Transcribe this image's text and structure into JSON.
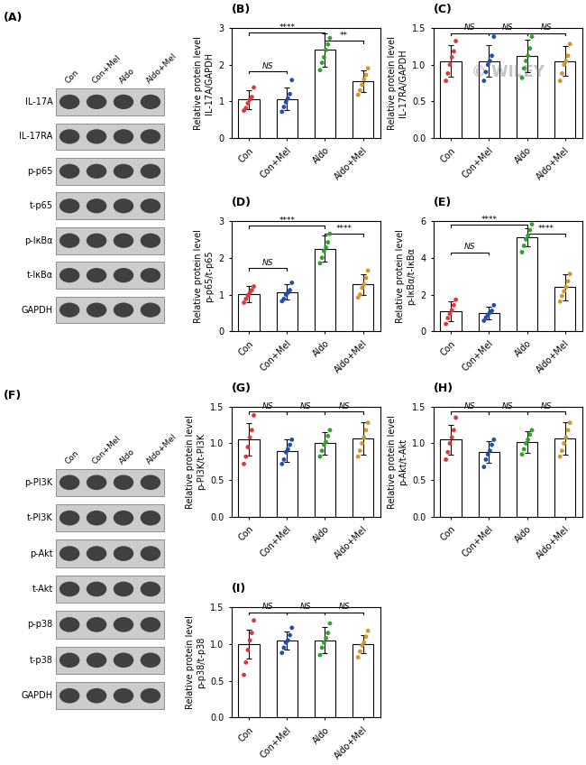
{
  "chart_data": [
    {
      "type": "blot",
      "title": "(A)",
      "rows": [
        "IL-17A",
        "IL-17RA",
        "p-p65",
        "t-p65",
        "p-IκBα",
        "t-IκBα",
        "GAPDH"
      ],
      "categories": [
        "Con",
        "Con+Mel",
        "Aldo",
        "Aldo+Mel"
      ]
    },
    {
      "type": "bar",
      "title": "(B)",
      "ylabel": "Relative protein level\nIL-17A/GAPDH",
      "categories": [
        "Con",
        "Con+Mel",
        "Aldo",
        "Aldo+Mel"
      ],
      "values": [
        1.05,
        1.07,
        2.4,
        1.55
      ],
      "errors": [
        0.25,
        0.3,
        0.45,
        0.3
      ],
      "points": [
        [
          0.75,
          0.82,
          0.95,
          1.05,
          1.12,
          1.38
        ],
        [
          0.72,
          0.85,
          0.98,
          1.08,
          1.2,
          1.58
        ],
        [
          1.85,
          2.05,
          2.2,
          2.4,
          2.55,
          2.72
        ],
        [
          1.18,
          1.3,
          1.45,
          1.6,
          1.72,
          1.9
        ]
      ],
      "colors": [
        "#e0353b",
        "#1f4fac",
        "#2ca42a",
        "#d4952a"
      ],
      "ylim": [
        0,
        3
      ],
      "yticks": [
        0,
        1,
        2,
        3
      ],
      "comparisons": [
        {
          "from": "Con",
          "to": "Aldo",
          "y": 2.87,
          "label": "****"
        },
        {
          "from": "Con",
          "to": "Con+Mel",
          "y": 1.82,
          "label": "NS"
        },
        {
          "from": "Aldo",
          "to": "Aldo+Mel",
          "y": 2.65,
          "label": "**"
        }
      ]
    },
    {
      "type": "bar",
      "title": "(C)",
      "ylabel": "Relative protein level\nIL-17RA/GAPDH",
      "categories": [
        "Con",
        "Con+Mel",
        "Aldo",
        "Aldo+Mel"
      ],
      "values": [
        1.05,
        1.05,
        1.12,
        1.05
      ],
      "errors": [
        0.22,
        0.22,
        0.22,
        0.2
      ],
      "points": [
        [
          0.78,
          0.88,
          1.0,
          1.1,
          1.18,
          1.32
        ],
        [
          0.78,
          0.9,
          1.0,
          1.05,
          1.12,
          1.38
        ],
        [
          0.82,
          0.95,
          1.05,
          1.12,
          1.22,
          1.38
        ],
        [
          0.78,
          0.88,
          1.0,
          1.05,
          1.12,
          1.28
        ]
      ],
      "colors": [
        "#e0353b",
        "#1f4fac",
        "#2ca42a",
        "#d4952a"
      ],
      "ylim": [
        0.0,
        1.5
      ],
      "yticks": [
        {
          "value": 0.0,
          "label": "0.0"
        },
        0.5,
        {
          "value": 1.0,
          "label": "1.0"
        },
        1.5
      ],
      "comparisons": [
        {
          "from": "Con",
          "to": "Con+Mel",
          "y": 1.43,
          "label": "NS"
        },
        {
          "from": "Con+Mel",
          "to": "Aldo",
          "y": 1.43,
          "label": "NS"
        },
        {
          "from": "Aldo",
          "to": "Aldo+Mel",
          "y": 1.43,
          "label": "NS"
        }
      ],
      "annotations": [
        "© WILEY"
      ]
    },
    {
      "type": "bar",
      "title": "(D)",
      "ylabel": "Relative protein level\np-p65/t-p65",
      "categories": [
        "Con",
        "Con+Mel",
        "Aldo",
        "Aldo+Mel"
      ],
      "values": [
        1.02,
        1.07,
        2.25,
        1.28
      ],
      "errors": [
        0.22,
        0.2,
        0.35,
        0.28
      ],
      "points": [
        [
          0.78,
          0.88,
          0.98,
          1.05,
          1.12,
          1.22
        ],
        [
          0.82,
          0.88,
          1.0,
          1.05,
          1.12,
          1.32
        ],
        [
          1.85,
          2.0,
          2.18,
          2.28,
          2.42,
          2.65
        ],
        [
          0.92,
          1.0,
          1.18,
          1.28,
          1.45,
          1.65
        ]
      ],
      "colors": [
        "#e0353b",
        "#1f4fac",
        "#2ca42a",
        "#d4952a"
      ],
      "ylim": [
        0,
        3
      ],
      "yticks": [
        0,
        1,
        2,
        3
      ],
      "comparisons": [
        {
          "from": "Con",
          "to": "Aldo",
          "y": 2.87,
          "label": "****"
        },
        {
          "from": "Con",
          "to": "Con+Mel",
          "y": 1.72,
          "label": "NS"
        },
        {
          "from": "Aldo",
          "to": "Aldo+Mel",
          "y": 2.65,
          "label": "****"
        }
      ]
    },
    {
      "type": "bar",
      "title": "(E)",
      "ylabel": "Relative protein level\np-IκBα/t-IκBα",
      "categories": [
        "Con",
        "Con+Mel",
        "Aldo",
        "Aldo+Mel"
      ],
      "values": [
        1.1,
        1.0,
        5.1,
        2.4
      ],
      "errors": [
        0.55,
        0.35,
        0.5,
        0.7
      ],
      "points": [
        [
          0.4,
          0.72,
          0.95,
          1.15,
          1.42,
          1.72
        ],
        [
          0.58,
          0.75,
          0.9,
          1.02,
          1.12,
          1.42
        ],
        [
          4.3,
          4.65,
          5.0,
          5.2,
          5.5,
          5.82
        ],
        [
          1.62,
          1.92,
          2.18,
          2.42,
          2.72,
          3.12
        ]
      ],
      "colors": [
        "#e0353b",
        "#1f4fac",
        "#2ca42a",
        "#d4952a"
      ],
      "ylim": [
        0,
        6
      ],
      "yticks": [
        0,
        2,
        4,
        6
      ],
      "comparisons": [
        {
          "from": "Con",
          "to": "Aldo",
          "y": 5.78,
          "label": "****"
        },
        {
          "from": "Con",
          "to": "Con+Mel",
          "y": 4.3,
          "label": "NS"
        },
        {
          "from": "Aldo",
          "to": "Aldo+Mel",
          "y": 5.3,
          "label": "****"
        }
      ]
    },
    {
      "type": "blot",
      "title": "(F)",
      "rows": [
        "p-PI3K",
        "t-PI3K",
        "p-Akt",
        "t-Akt",
        "p-p38",
        "t-p38",
        "GAPDH"
      ],
      "categories": [
        "Con",
        "Con+Mel",
        "Aldo",
        "Aldo+Mel"
      ]
    },
    {
      "type": "bar",
      "title": "(G)",
      "ylabel": "Relative protein level\np-PI3K/t-PI3K",
      "categories": [
        "Con",
        "Con+Mel",
        "Aldo",
        "Aldo+Mel"
      ],
      "values": [
        1.05,
        0.9,
        1.0,
        1.07
      ],
      "errors": [
        0.22,
        0.15,
        0.15,
        0.22
      ],
      "points": [
        [
          0.72,
          0.82,
          0.95,
          1.08,
          1.18,
          1.38
        ],
        [
          0.72,
          0.78,
          0.88,
          0.92,
          0.98,
          1.05
        ],
        [
          0.82,
          0.9,
          0.98,
          1.02,
          1.1,
          1.18
        ],
        [
          0.82,
          0.9,
          1.0,
          1.08,
          1.18,
          1.28
        ]
      ],
      "colors": [
        "#e0353b",
        "#1f4fac",
        "#2ca42a",
        "#d4952a"
      ],
      "ylim": [
        0.0,
        1.5
      ],
      "yticks": [
        {
          "value": 0.0,
          "label": "0.0"
        },
        0.5,
        {
          "value": 1.0,
          "label": "1.0"
        },
        1.5
      ],
      "comparisons": [
        {
          "from": "Con",
          "to": "Con+Mel",
          "y": 1.43,
          "label": "NS"
        },
        {
          "from": "Con+Mel",
          "to": "Aldo",
          "y": 1.43,
          "label": "NS"
        },
        {
          "from": "Aldo",
          "to": "Aldo+Mel",
          "y": 1.43,
          "label": "NS"
        }
      ]
    },
    {
      "type": "bar",
      "title": "(H)",
      "ylabel": "Relative protein level\np-Akt/t-Akt",
      "categories": [
        "Con",
        "Con+Mel",
        "Aldo",
        "Aldo+Mel"
      ],
      "values": [
        1.05,
        0.88,
        1.02,
        1.07
      ],
      "errors": [
        0.2,
        0.15,
        0.15,
        0.22
      ],
      "points": [
        [
          0.78,
          0.88,
          1.0,
          1.08,
          1.18,
          1.35
        ],
        [
          0.68,
          0.78,
          0.85,
          0.9,
          0.98,
          1.05
        ],
        [
          0.85,
          0.92,
          1.0,
          1.05,
          1.12,
          1.18
        ],
        [
          0.82,
          0.9,
          1.0,
          1.08,
          1.18,
          1.28
        ]
      ],
      "colors": [
        "#e0353b",
        "#1f4fac",
        "#2ca42a",
        "#d4952a"
      ],
      "ylim": [
        0.0,
        1.5
      ],
      "yticks": [
        {
          "value": 0.0,
          "label": "0.0"
        },
        0.5,
        {
          "value": 1.0,
          "label": "1.0"
        },
        1.5
      ],
      "comparisons": [
        {
          "from": "Con",
          "to": "Con+Mel",
          "y": 1.43,
          "label": "NS"
        },
        {
          "from": "Con+Mel",
          "to": "Aldo",
          "y": 1.43,
          "label": "NS"
        },
        {
          "from": "Aldo",
          "to": "Aldo+Mel",
          "y": 1.43,
          "label": "NS"
        }
      ]
    },
    {
      "type": "bar",
      "title": "(I)",
      "ylabel": "Relative protein level\np-p38/t-p38",
      "categories": [
        "Con",
        "Con+Mel",
        "Aldo",
        "Aldo+Mel"
      ],
      "values": [
        1.0,
        1.05,
        1.05,
        1.0
      ],
      "errors": [
        0.2,
        0.12,
        0.18,
        0.12
      ],
      "points": [
        [
          0.58,
          0.75,
          0.92,
          1.05,
          1.15,
          1.32
        ],
        [
          0.88,
          0.95,
          1.02,
          1.05,
          1.12,
          1.22
        ],
        [
          0.85,
          0.95,
          1.02,
          1.08,
          1.15,
          1.28
        ],
        [
          0.82,
          0.9,
          0.98,
          1.02,
          1.1,
          1.18
        ]
      ],
      "colors": [
        "#e0353b",
        "#1f4fac",
        "#2ca42a",
        "#d4952a"
      ],
      "ylim": [
        0.0,
        1.5
      ],
      "yticks": [
        {
          "value": 0.0,
          "label": "0.0"
        },
        0.5,
        {
          "value": 1.0,
          "label": "1.0"
        },
        1.5
      ],
      "comparisons": [
        {
          "from": "Con",
          "to": "Con+Mel",
          "y": 1.43,
          "label": "NS"
        },
        {
          "from": "Con+Mel",
          "to": "Aldo",
          "y": 1.43,
          "label": "NS"
        },
        {
          "from": "Aldo",
          "to": "Aldo+Mel",
          "y": 1.43,
          "label": "NS"
        }
      ]
    }
  ]
}
